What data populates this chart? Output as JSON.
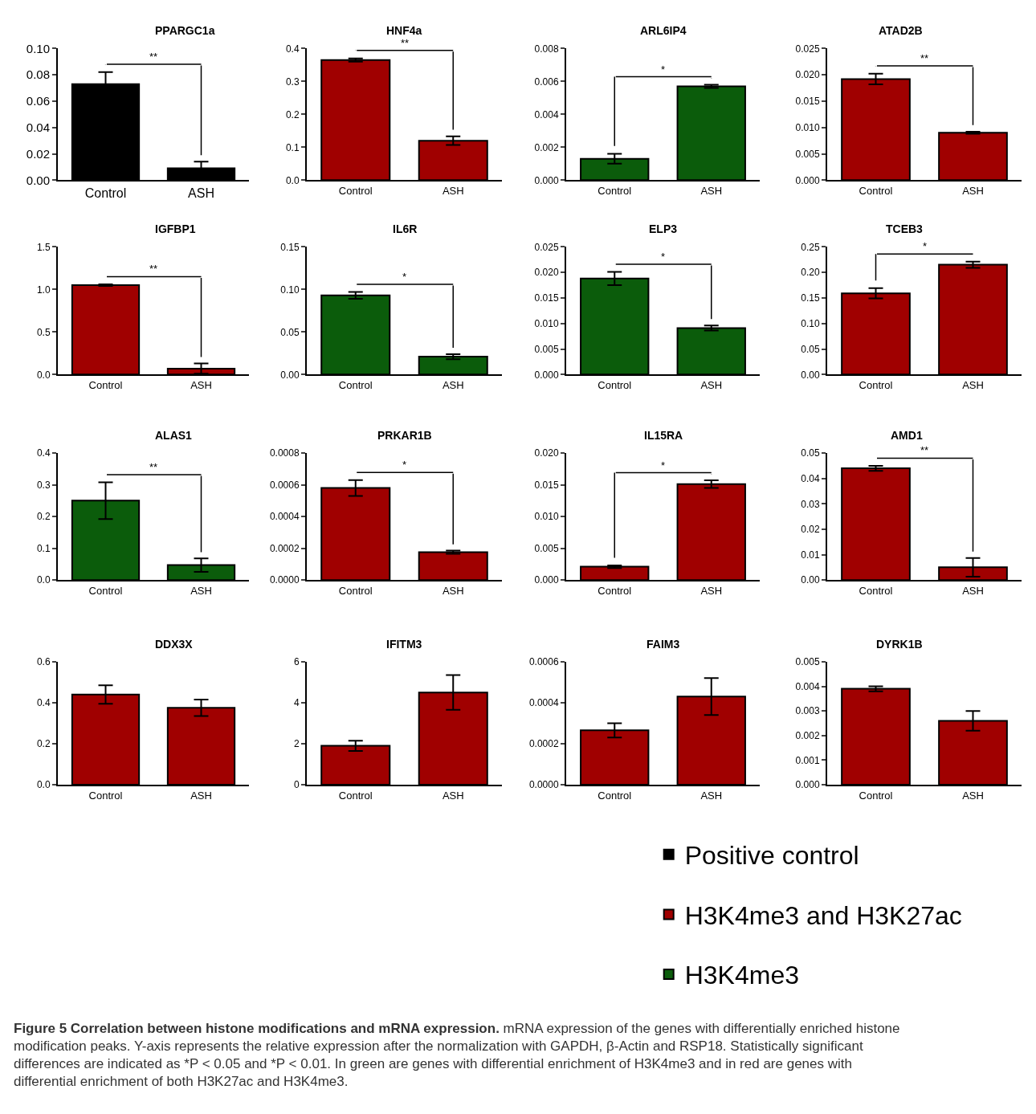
{
  "chart_data": [
    {
      "type": "bar",
      "title": "PPARGC1a",
      "categories": [
        "Control",
        "ASH"
      ],
      "ylim": [
        0,
        0.1
      ],
      "yticks": [
        {
          "value": 0,
          "label": "0.00"
        },
        {
          "value": 0.02,
          "label": "0.02"
        },
        {
          "value": 0.04,
          "label": "0.04"
        },
        {
          "value": 0.06,
          "label": "0.06"
        },
        {
          "value": 0.08,
          "label": "0.08"
        },
        {
          "value": 0.1,
          "label": "0.10"
        }
      ],
      "annotations": [
        "**"
      ],
      "legend": "bottom right",
      "series": [
        {
          "name": "Positive control",
          "color": "#000000",
          "values": [
            0.073,
            0.009
          ],
          "errors": [
            0.009,
            0.005
          ]
        }
      ]
    },
    {
      "type": "bar",
      "title": "HNF4a",
      "categories": [
        "Control",
        "ASH"
      ],
      "ylim": [
        0,
        0.4
      ],
      "yticks": [
        {
          "value": 0,
          "label": "0.0"
        },
        0.1,
        0.2,
        0.3,
        0.4
      ],
      "annotations": [
        "**"
      ],
      "legend": "bottom right",
      "series": [
        {
          "name": "H3K4me3 and H3K27ac",
          "color": "#a00000",
          "values": [
            0.365,
            0.12
          ],
          "errors": [
            0.005,
            0.013
          ]
        }
      ]
    },
    {
      "type": "bar",
      "title": "ARL6IP4",
      "categories": [
        "Control",
        "ASH"
      ],
      "ylim": [
        0,
        0.008
      ],
      "yticks": [
        {
          "value": 0,
          "label": "0.000"
        },
        0.002,
        0.004,
        0.006,
        0.008
      ],
      "annotations": [
        "*"
      ],
      "legend": "bottom right",
      "series": [
        {
          "name": "H3K4me3",
          "color": "#0b5c0b",
          "values": [
            0.0013,
            0.0057
          ],
          "errors": [
            0.0003,
            0.0001
          ]
        }
      ]
    },
    {
      "type": "bar",
      "title": "ATAD2B",
      "categories": [
        "Control",
        "ASH"
      ],
      "ylim": [
        0,
        0.025
      ],
      "yticks": [
        {
          "value": 0,
          "label": "0.000"
        },
        0.005,
        {
          "value": 0.01,
          "label": "0.010"
        },
        0.015,
        {
          "value": 0.02,
          "label": "0.020"
        },
        0.025
      ],
      "annotations": [
        "**"
      ],
      "legend": "bottom right",
      "series": [
        {
          "name": "H3K4me3 and H3K27ac",
          "color": "#a00000",
          "values": [
            0.0192,
            0.009
          ],
          "errors": [
            0.001,
            0.0002
          ]
        }
      ]
    },
    {
      "type": "bar",
      "title": "IGFBP1",
      "categories": [
        "Control",
        "ASH"
      ],
      "ylim": [
        0,
        1.5
      ],
      "yticks": [
        {
          "value": 0,
          "label": "0.0"
        },
        0.5,
        {
          "value": 1,
          "label": "1.0"
        },
        1.5
      ],
      "annotations": [
        "**"
      ],
      "legend": "bottom right",
      "series": [
        {
          "name": "H3K4me3 and H3K27ac",
          "color": "#a00000",
          "values": [
            1.05,
            0.07
          ],
          "errors": [
            0.01,
            0.06
          ]
        }
      ]
    },
    {
      "type": "bar",
      "title": "IL6R",
      "categories": [
        "Control",
        "ASH"
      ],
      "ylim": [
        0,
        0.15
      ],
      "yticks": [
        {
          "value": 0,
          "label": "0.00"
        },
        0.05,
        {
          "value": 0.1,
          "label": "0.10"
        },
        0.15
      ],
      "annotations": [
        "*"
      ],
      "legend": "bottom right",
      "series": [
        {
          "name": "H3K4me3",
          "color": "#0b5c0b",
          "values": [
            0.093,
            0.021
          ],
          "errors": [
            0.004,
            0.003
          ]
        }
      ]
    },
    {
      "type": "bar",
      "title": "ELP3",
      "categories": [
        "Control",
        "ASH"
      ],
      "ylim": [
        0,
        0.025
      ],
      "yticks": [
        {
          "value": 0,
          "label": "0.000"
        },
        0.005,
        {
          "value": 0.01,
          "label": "0.010"
        },
        0.015,
        {
          "value": 0.02,
          "label": "0.020"
        },
        0.025
      ],
      "annotations": [
        "*"
      ],
      "legend": "bottom right",
      "series": [
        {
          "name": "H3K4me3",
          "color": "#0b5c0b",
          "values": [
            0.0188,
            0.0091
          ],
          "errors": [
            0.0013,
            0.0005
          ]
        }
      ]
    },
    {
      "type": "bar",
      "title": "TCEB3",
      "categories": [
        "Control",
        "ASH"
      ],
      "ylim": [
        0,
        0.25
      ],
      "yticks": [
        {
          "value": 0,
          "label": "0.00"
        },
        0.05,
        {
          "value": 0.1,
          "label": "0.10"
        },
        0.15,
        {
          "value": 0.2,
          "label": "0.20"
        },
        0.25
      ],
      "annotations": [
        "*"
      ],
      "legend": "bottom right",
      "series": [
        {
          "name": "H3K4me3 and H3K27ac",
          "color": "#a00000",
          "values": [
            0.159,
            0.215
          ],
          "errors": [
            0.01,
            0.006
          ]
        }
      ]
    },
    {
      "type": "bar",
      "title": "ALAS1",
      "categories": [
        "Control",
        "ASH"
      ],
      "ylim": [
        0,
        0.4
      ],
      "yticks": [
        {
          "value": 0,
          "label": "0.0"
        },
        0.1,
        0.2,
        0.3,
        0.4
      ],
      "annotations": [
        "**"
      ],
      "legend": "bottom right",
      "series": [
        {
          "name": "H3K4me3",
          "color": "#0b5c0b",
          "values": [
            0.25,
            0.047
          ],
          "errors": [
            0.058,
            0.021
          ]
        }
      ]
    },
    {
      "type": "bar",
      "title": "PRKAR1B",
      "categories": [
        "Control",
        "ASH"
      ],
      "ylim": [
        0,
        0.0008
      ],
      "yticks": [
        {
          "value": 0,
          "label": "0.0000"
        },
        {
          "value": 0.0002,
          "label": "0.0002"
        },
        {
          "value": 0.0004,
          "label": "0.0004"
        },
        {
          "value": 0.0006,
          "label": "0.0006"
        },
        {
          "value": 0.0008,
          "label": "0.0008"
        }
      ],
      "annotations": [
        "*"
      ],
      "legend": "bottom right",
      "series": [
        {
          "name": "H3K4me3 and H3K27ac",
          "color": "#a00000",
          "values": [
            0.00058,
            0.000175
          ],
          "errors": [
            5e-05,
            1e-05
          ]
        }
      ]
    },
    {
      "type": "bar",
      "title": "IL15RA",
      "categories": [
        "Control",
        "ASH"
      ],
      "ylim": [
        0,
        0.02
      ],
      "yticks": [
        {
          "value": 0,
          "label": "0.000"
        },
        0.005,
        {
          "value": 0.01,
          "label": "0.010"
        },
        0.015,
        {
          "value": 0.02,
          "label": "0.020"
        }
      ],
      "annotations": [
        "*"
      ],
      "legend": "bottom right",
      "series": [
        {
          "name": "H3K4me3 and H3K27ac",
          "color": "#a00000",
          "values": [
            0.0021,
            0.0151
          ],
          "errors": [
            0.0002,
            0.0006
          ]
        }
      ]
    },
    {
      "type": "bar",
      "title": "AMD1",
      "categories": [
        "Control",
        "ASH"
      ],
      "ylim": [
        0,
        0.05
      ],
      "yticks": [
        {
          "value": 0,
          "label": "0.00"
        },
        0.01,
        0.02,
        0.03,
        0.04,
        0.05
      ],
      "annotations": [
        "**"
      ],
      "legend": "bottom right",
      "series": [
        {
          "name": "H3K4me3 and H3K27ac",
          "color": "#a00000",
          "values": [
            0.044,
            0.005
          ],
          "errors": [
            0.001,
            0.0037
          ]
        }
      ]
    },
    {
      "type": "bar",
      "title": "DDX3X",
      "categories": [
        "Control",
        "ASH"
      ],
      "ylim": [
        0,
        0.6
      ],
      "yticks": [
        {
          "value": 0,
          "label": "0.0"
        },
        0.2,
        0.4,
        0.6
      ],
      "legend": "bottom right",
      "series": [
        {
          "name": "H3K4me3 and H3K27ac",
          "color": "#a00000",
          "values": [
            0.44,
            0.375
          ],
          "errors": [
            0.045,
            0.04
          ]
        }
      ]
    },
    {
      "type": "bar",
      "title": "IFITM3",
      "categories": [
        "Control",
        "ASH"
      ],
      "ylim": [
        0,
        6
      ],
      "yticks": [
        0,
        2,
        4,
        6
      ],
      "legend": "bottom right",
      "series": [
        {
          "name": "H3K4me3 and H3K27ac",
          "color": "#a00000",
          "values": [
            1.9,
            4.5
          ],
          "errors": [
            0.25,
            0.85
          ]
        }
      ]
    },
    {
      "type": "bar",
      "title": "FAIM3",
      "categories": [
        "Control",
        "ASH"
      ],
      "ylim": [
        0,
        0.0006
      ],
      "yticks": [
        {
          "value": 0,
          "label": "0.0000"
        },
        {
          "value": 0.0002,
          "label": "0.0002"
        },
        {
          "value": 0.0004,
          "label": "0.0004"
        },
        {
          "value": 0.0006,
          "label": "0.0006"
        }
      ],
      "legend": "bottom right",
      "series": [
        {
          "name": "H3K4me3 and H3K27ac",
          "color": "#a00000",
          "values": [
            0.000265,
            0.00043
          ],
          "errors": [
            3.5e-05,
            9e-05
          ]
        }
      ]
    },
    {
      "type": "bar",
      "title": "DYRK1B",
      "categories": [
        "Control",
        "ASH"
      ],
      "ylim": [
        0,
        0.005
      ],
      "yticks": [
        {
          "value": 0,
          "label": "0.000"
        },
        0.001,
        0.002,
        0.003,
        0.004,
        0.005
      ],
      "legend": "bottom right",
      "series": [
        {
          "name": "H3K4me3 and H3K27ac",
          "color": "#a00000",
          "values": [
            0.0039,
            0.0026
          ],
          "errors": [
            0.0001,
            0.0004
          ]
        }
      ]
    },
    {
      "type": "other",
      "title": "Figure 5 Correlation between histone modifications and mRNA expression.",
      "annotations": [
        "mRNA expression of the genes with differentially enriched histone modification peaks. Y-axis represents the relative expression after the normalization with GAPDH, β-Actin and RSP18. Statistically significant differences are indicated as *P < 0.05 and *P < 0.01. In green are genes with differential enrichment of H3K4me3 and in red are genes with differential enrichment of both H3K27ac and H3K4me3."
      ]
    }
  ]
}
